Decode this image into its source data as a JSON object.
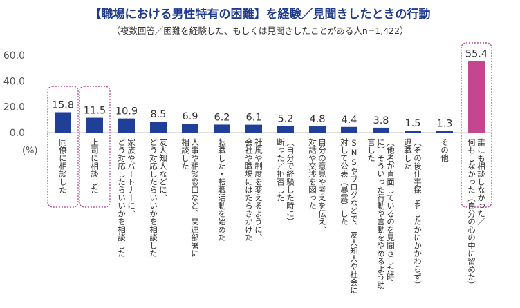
{
  "title": "【職場における男性特有の困難】を経験／見聞きしたときの行動",
  "subtitle": "（複数回答／困難を経験した、もしくは見聞きしたことがある人n=1,422）",
  "colors": {
    "bar": "#1f3f99",
    "highlight_bar": "#c4468e",
    "highlight_box": "#b2559a",
    "axis": "#bbbbbb"
  },
  "chart_data": {
    "type": "bar",
    "title": "【職場における男性特有の困難】を経験／見聞きしたときの行動",
    "subtitle": "（複数回答／困難を経験した、もしくは見聞きしたことがある人n=1,422）",
    "ylabel": "(%)",
    "ylim": [
      0,
      60
    ],
    "yticks": [
      "60.0",
      "40.0",
      "20.0",
      "0.0"
    ],
    "grid": false,
    "categories": [
      [
        "同僚に相談した"
      ],
      [
        "上司に相談した"
      ],
      [
        "家族やパートナーに、",
        "どう対応したらいいかを相談した"
      ],
      [
        "友人知人などに、",
        "どう対応したらいいかを相談した"
      ],
      [
        "人事や相談窓口など、関連部署に",
        "相談した"
      ],
      [
        "転職した・転職活動を始めた"
      ],
      [
        "社風や制度を変えるように、",
        "会社や職場にはたらきかけた"
      ],
      [
        "（自分で経験した時に）",
        "断った／拒否した"
      ],
      [
        "自分の意見や考えを伝え、",
        "対話や交渉を図った"
      ],
      [
        "SNSやブログなどで、友人知人や社会に",
        "対して公表（暴露）した"
      ],
      [
        "（他者が直面しているのを見聞きした時",
        "に）そういった行動や言動をやめるよう助",
        "言した"
      ],
      [
        "（その後仕事探しをしたかにかかわらず）",
        "退職した"
      ],
      [
        "その他"
      ],
      [
        "誰にも相談しなかった／",
        "何もしなかった（自分の心の中に留めた）"
      ]
    ],
    "values": [
      15.8,
      11.5,
      10.9,
      8.5,
      6.9,
      6.2,
      6.1,
      5.2,
      4.8,
      4.4,
      3.8,
      1.5,
      1.3,
      55.4
    ],
    "value_labels": [
      "15.8",
      "11.5",
      "10.9",
      "8.5",
      "6.9",
      "6.2",
      "6.1",
      "5.2",
      "4.8",
      "4.4",
      "3.8",
      "1.5",
      "1.3",
      "55.4"
    ],
    "highlighted": [
      0,
      1,
      13
    ]
  }
}
